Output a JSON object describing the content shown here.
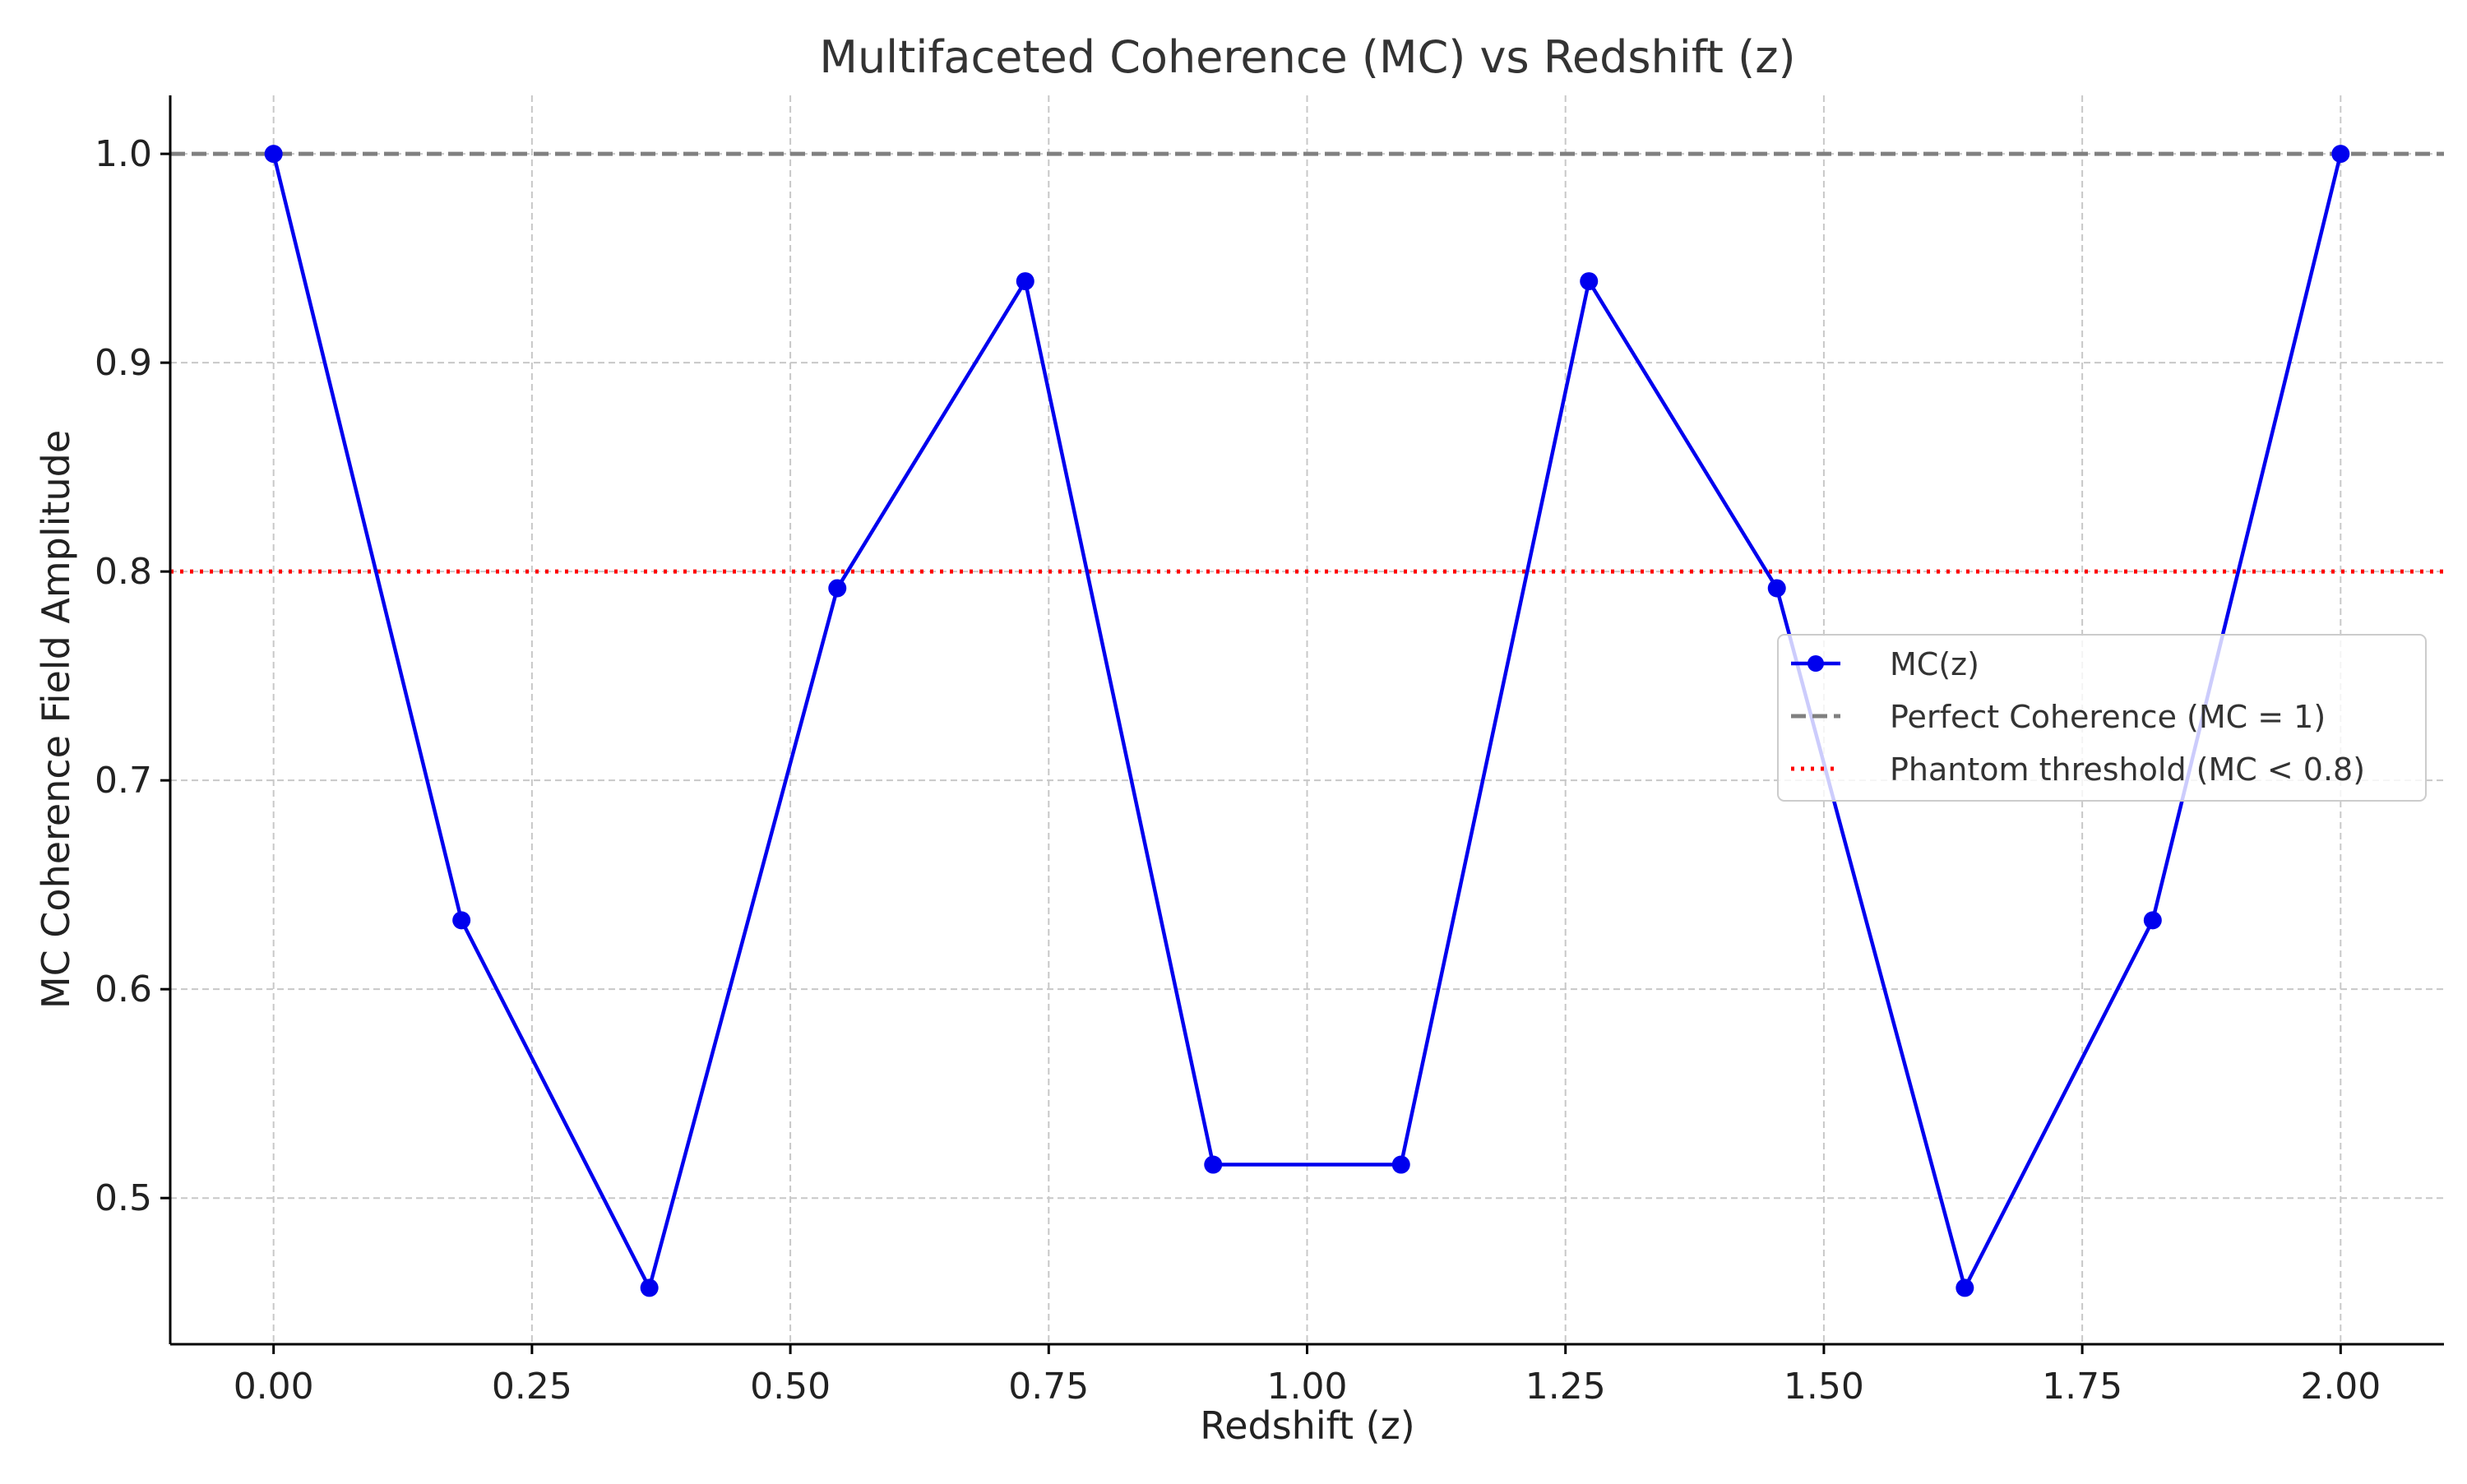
{
  "chart_data": {
    "type": "line",
    "title": "Multifaceted Coherence (MC) vs Redshift (z)",
    "xlabel": "Redshift (z)",
    "ylabel": "MC Coherence Field Amplitude",
    "xlim": [
      -0.1,
      2.1
    ],
    "ylim": [
      0.43,
      1.028
    ],
    "xticks": [
      0.0,
      0.25,
      0.5,
      0.75,
      1.0,
      1.25,
      1.5,
      1.75,
      2.0
    ],
    "xtick_labels": [
      "0.00",
      "0.25",
      "0.50",
      "0.75",
      "1.00",
      "1.25",
      "1.50",
      "1.75",
      "2.00"
    ],
    "yticks": [
      0.5,
      0.6,
      0.7,
      0.8,
      0.9,
      1.0
    ],
    "ytick_labels": [
      "0.5",
      "0.6",
      "0.7",
      "0.8",
      "0.9",
      "1.0"
    ],
    "grid": true,
    "legend_position": "center-right",
    "series": [
      {
        "name": "MC(z)",
        "style": "line-with-markers",
        "color": "#0000ee",
        "x": [
          0.0,
          0.1818,
          0.3636,
          0.5455,
          0.7273,
          0.9091,
          1.0909,
          1.2727,
          1.4545,
          1.6364,
          1.8182,
          2.0
        ],
        "y": [
          1.0,
          0.633,
          0.457,
          0.792,
          0.939,
          0.516,
          0.516,
          0.939,
          0.792,
          0.457,
          0.633,
          1.0
        ]
      }
    ],
    "reference_lines": [
      {
        "name": "Perfect Coherence (MC = 1)",
        "y": 1.0,
        "style": "dashed",
        "color": "#808080"
      },
      {
        "name": "Phantom threshold (MC < 0.8)",
        "y": 0.8,
        "style": "dotted",
        "color": "#ff0000"
      }
    ]
  }
}
